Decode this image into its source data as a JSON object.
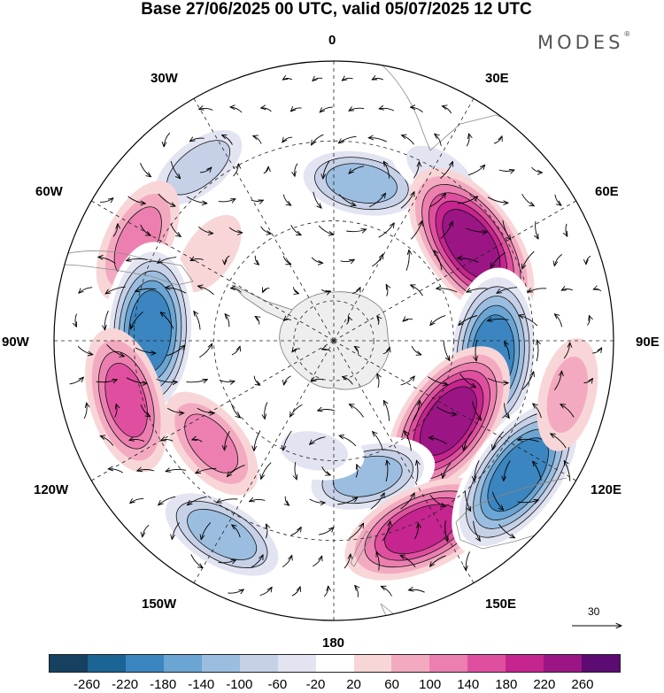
{
  "title": "Base 27/06/2025 00 UTC, valid 05/07/2025 12 UTC",
  "brand": "MODES",
  "brand_mark": "®",
  "longitudes": {
    "lon_0": "0",
    "lon_30e": "30E",
    "lon_60e": "60E",
    "lon_90e": "90E",
    "lon_120e": "120E",
    "lon_150e": "150E",
    "lon_180": "180",
    "lon_150w": "150W",
    "lon_120w": "120W",
    "lon_90w": "90W",
    "lon_60w": "60W",
    "lon_30w": "30W"
  },
  "reference_vector": "30",
  "colorbar": {
    "colors": [
      "#15405f",
      "#1c6494",
      "#3b85c0",
      "#6aa5d3",
      "#9bbee0",
      "#c6d1e8",
      "#e3e4f1",
      "#ffffff",
      "#f8d6d8",
      "#f3aac0",
      "#ec7fb0",
      "#e04f9f",
      "#c6248f",
      "#9b1584",
      "#5c0b73"
    ],
    "tick_labels": [
      "-260",
      "-220",
      "-180",
      "-140",
      "-100",
      "-60",
      "-20",
      "20",
      "60",
      "100",
      "140",
      "180",
      "220",
      "260"
    ]
  },
  "anomaly_centers": [
    {
      "lat": -35,
      "lon": -38,
      "value": -120
    },
    {
      "lat": -50,
      "lon": 10,
      "value": -160
    },
    {
      "lat": -40,
      "lon": 32,
      "value": -60
    },
    {
      "lat": -35,
      "lon": -63,
      "value": 120
    },
    {
      "lat": -52,
      "lon": -55,
      "value": 40
    },
    {
      "lat": -48,
      "lon": 55,
      "value": 240
    },
    {
      "lat": -44,
      "lon": -87,
      "value": -220
    },
    {
      "lat": -50,
      "lon": 95,
      "value": -230
    },
    {
      "lat": -36,
      "lon": -106,
      "value": 150
    },
    {
      "lat": -55,
      "lon": 125,
      "value": 230
    },
    {
      "lat": -50,
      "lon": -130,
      "value": 110
    },
    {
      "lat": -55,
      "lon": 166,
      "value": -150
    },
    {
      "lat": -34,
      "lon": -150,
      "value": -150
    },
    {
      "lat": -38,
      "lon": 155,
      "value": 190
    },
    {
      "lat": -33,
      "lon": 126,
      "value": -230
    },
    {
      "lat": -30,
      "lon": 103,
      "value": 80
    },
    {
      "lat": -62,
      "lon": -170,
      "value": -80
    }
  ]
}
